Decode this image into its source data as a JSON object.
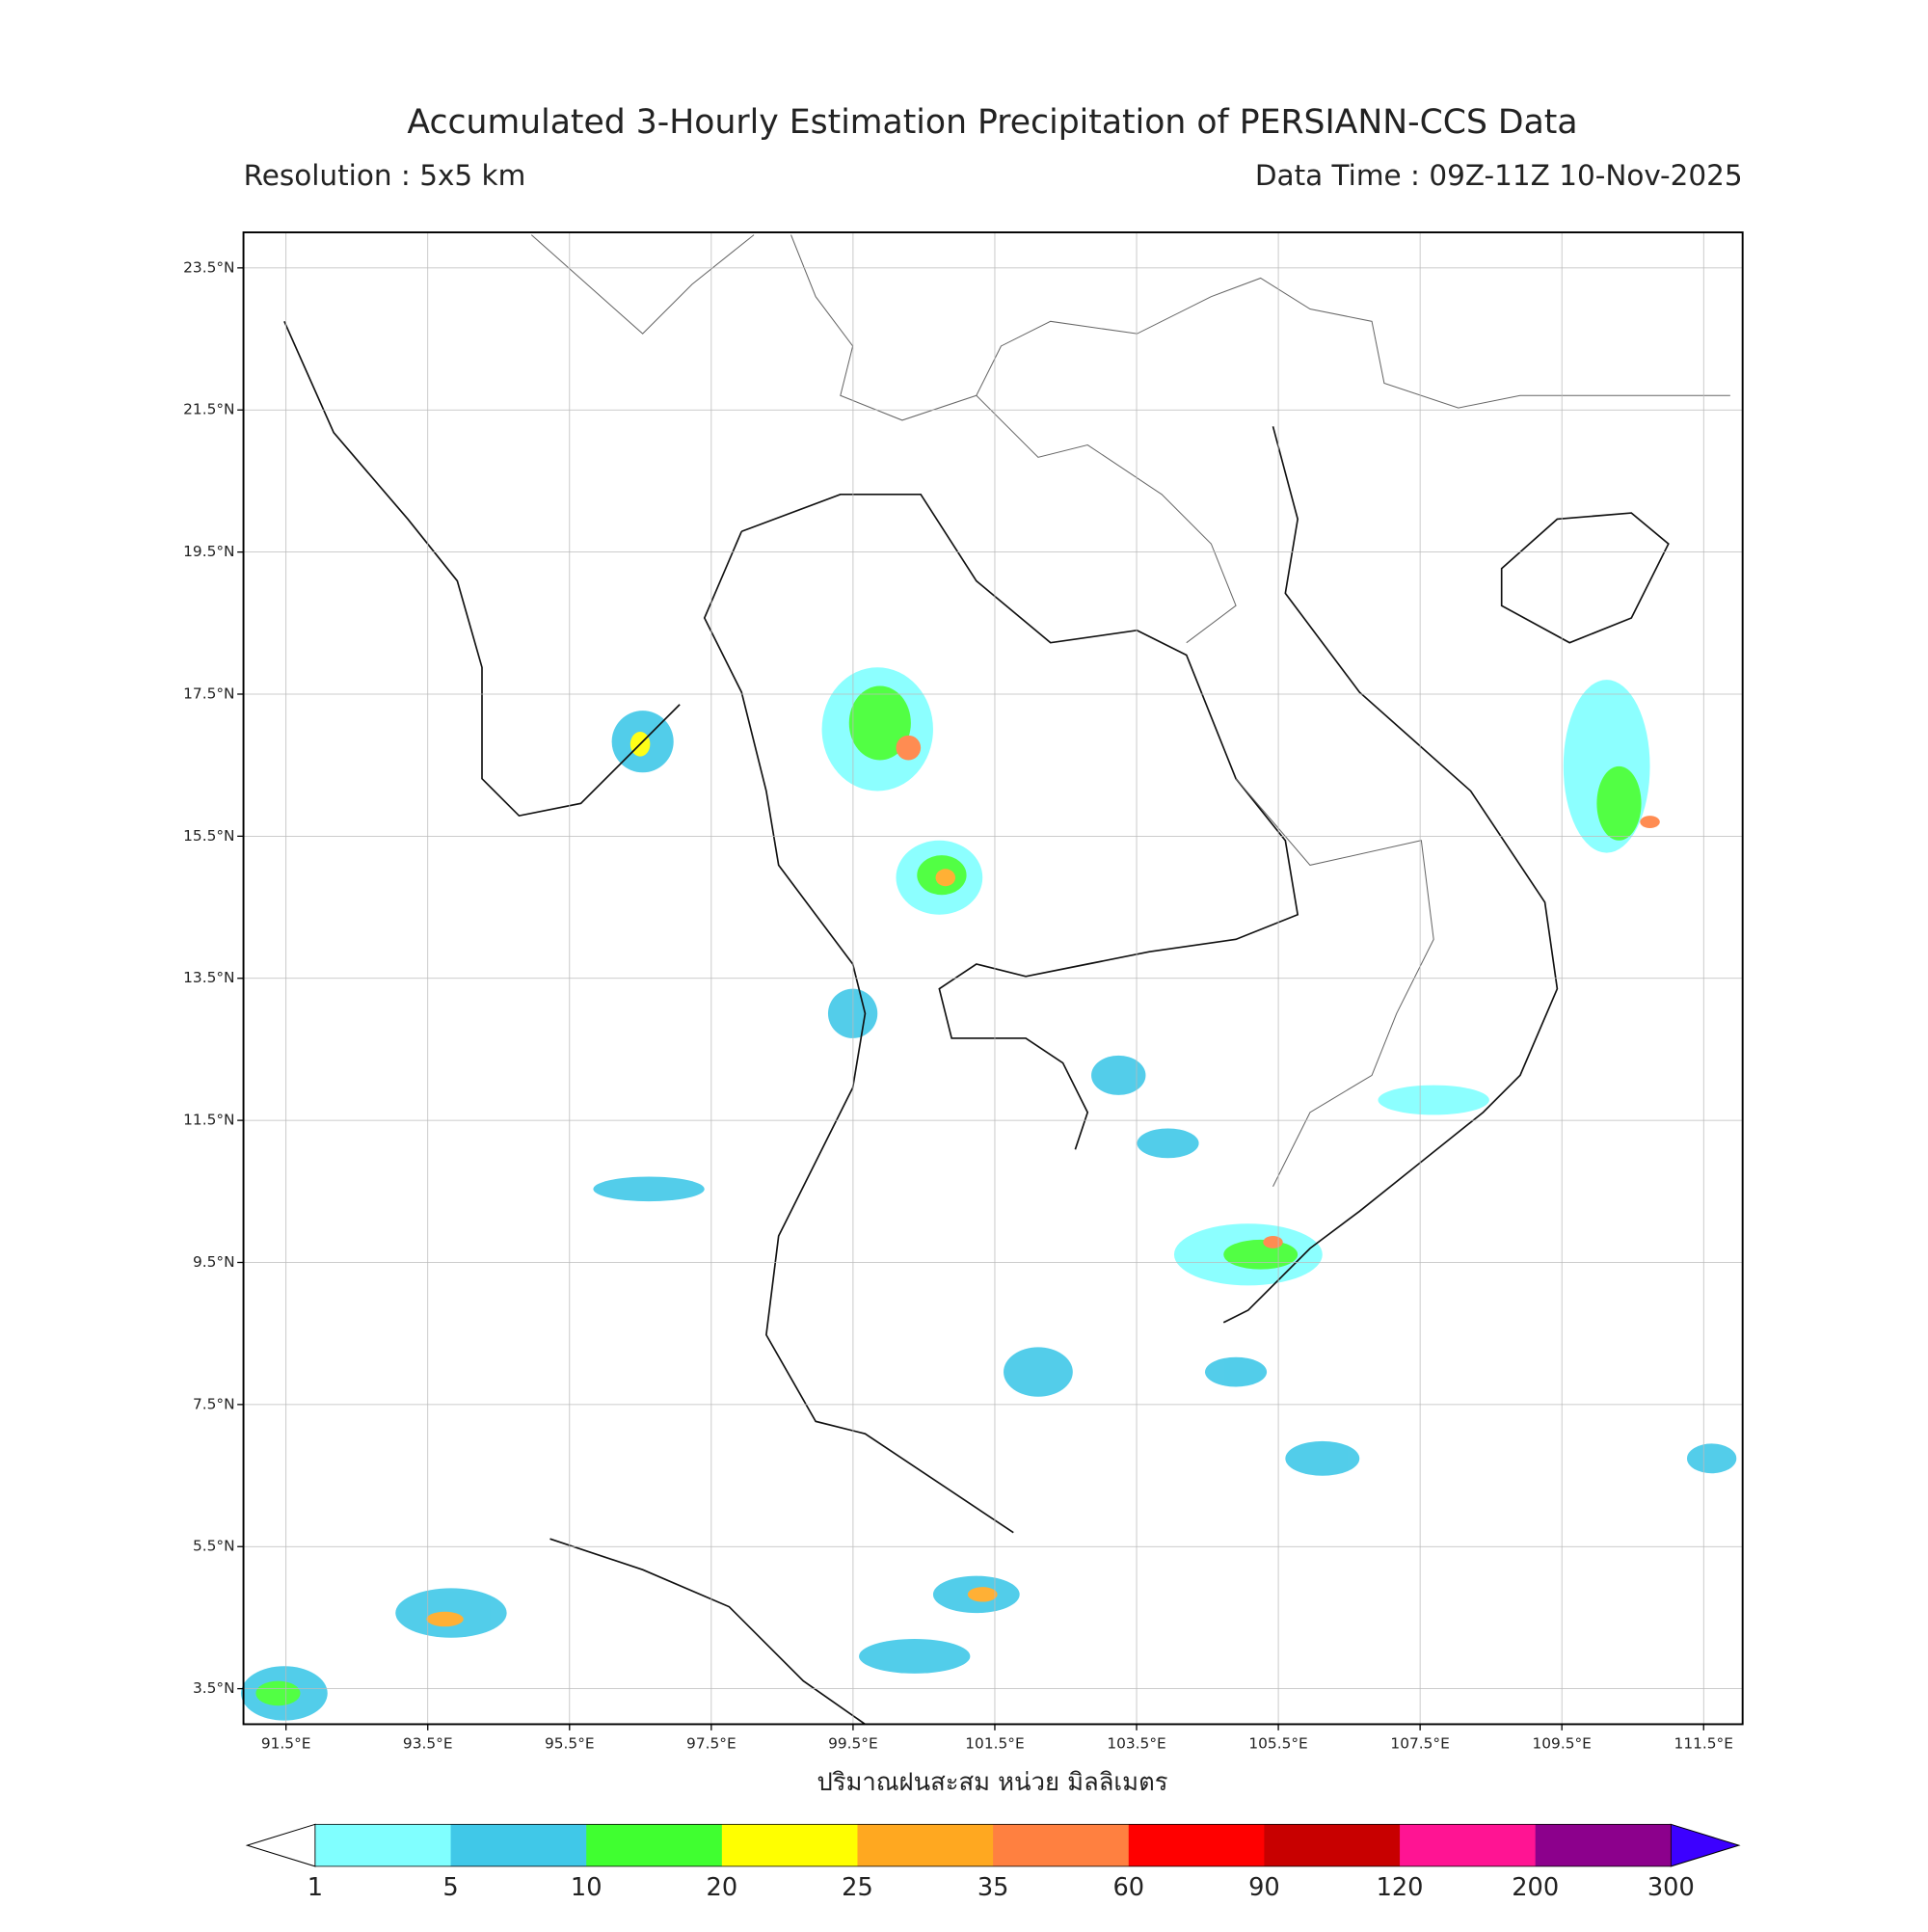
{
  "header": {
    "title": "Accumulated 3-Hourly Estimation Precipitation of PERSIANN-CCS Data",
    "resolution": "Resolution : 5x5 km",
    "data_time": "Data Time : 09Z-11Z 10-Nov-2025"
  },
  "map": {
    "lonlim": [
      90.9,
      112.05
    ],
    "latlim": [
      3.0,
      24.0
    ],
    "lon_ticks": [
      {
        "value": 91.5,
        "label": "91.5°E"
      },
      {
        "value": 93.5,
        "label": "93.5°E"
      },
      {
        "value": 95.5,
        "label": "95.5°E"
      },
      {
        "value": 97.5,
        "label": "97.5°E"
      },
      {
        "value": 99.5,
        "label": "99.5°E"
      },
      {
        "value": 101.5,
        "label": "101.5°E"
      },
      {
        "value": 103.5,
        "label": "103.5°E"
      },
      {
        "value": 105.5,
        "label": "105.5°E"
      },
      {
        "value": 107.5,
        "label": "107.5°E"
      },
      {
        "value": 109.5,
        "label": "109.5°E"
      },
      {
        "value": 111.5,
        "label": "111.5°E"
      }
    ],
    "lat_ticks": [
      {
        "value": 23.5,
        "label": "23.5°N"
      },
      {
        "value": 21.5,
        "label": "21.5°N"
      },
      {
        "value": 19.5,
        "label": "19.5°N"
      },
      {
        "value": 17.5,
        "label": "17.5°N"
      },
      {
        "value": 15.5,
        "label": "15.5°N"
      },
      {
        "value": 13.5,
        "label": "13.5°N"
      },
      {
        "value": 11.5,
        "label": "11.5°N"
      },
      {
        "value": 9.5,
        "label": "9.5°N"
      },
      {
        "value": 7.5,
        "label": "7.5°N"
      },
      {
        "value": 5.5,
        "label": "5.5°N"
      },
      {
        "value": 3.5,
        "label": "3.5°N"
      }
    ],
    "xlabel": "ปริมาณฝนสะสม หน่วย มิลลิเมตร"
  },
  "colorbar": {
    "levels": [
      1,
      5,
      10,
      20,
      25,
      35,
      60,
      90,
      120,
      200,
      300
    ],
    "colors": [
      "#80ffff",
      "#40c8e8",
      "#40ff30",
      "#ffff00",
      "#ffa820",
      "#ff8040",
      "#ff0000",
      "#c80000",
      "#ff1493",
      "#8c008c"
    ],
    "under_color": "#ffffff",
    "over_color": "#3c00ff"
  }
}
